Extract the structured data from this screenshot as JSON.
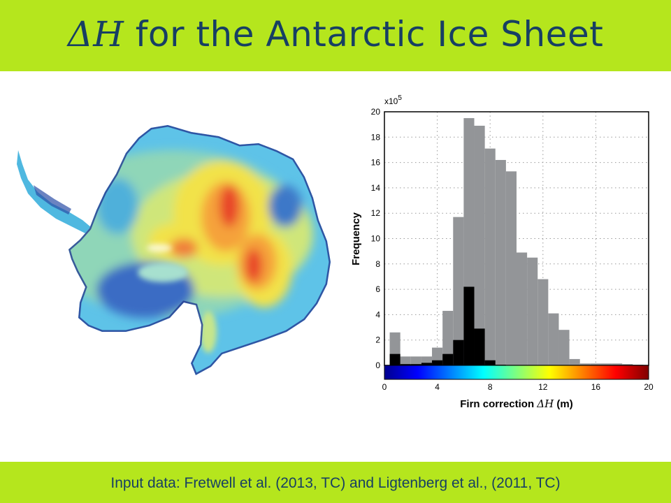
{
  "slide": {
    "title_symbol": "ΔH",
    "title_text": " for the Antarctic Ice Sheet",
    "footer": "Input data: Fretwell et al. (2013, TC) and Ligtenberg et al., (2011, TC)"
  },
  "colors": {
    "band": "#b5e61d",
    "title_text": "#173f63",
    "bar_all": "#939598",
    "bar_subset": "#000000"
  },
  "chart_data": {
    "type": "bar",
    "xlabel_text": "Firn correction ",
    "xlabel_symbol": "ΔH",
    "xlabel_unit": " (m)",
    "ylabel": "Frequency",
    "y_multiplier_base": "x10",
    "y_multiplier_exp": "5",
    "xlim": [
      0,
      20
    ],
    "ylim": [
      0,
      20
    ],
    "xticks": [
      0,
      4,
      8,
      12,
      16,
      20
    ],
    "yticks": [
      0,
      2,
      4,
      6,
      8,
      10,
      12,
      14,
      16,
      18,
      20
    ],
    "grid": true,
    "colorbar": "jet",
    "bin_width": 0.8,
    "bin_starts": [
      0.4,
      1.2,
      2.0,
      2.8,
      3.6,
      4.4,
      5.2,
      6.0,
      6.8,
      7.6,
      8.4,
      9.2,
      10.0,
      10.8,
      11.6,
      12.4,
      13.2,
      14.0,
      14.8,
      15.6,
      16.4,
      17.2,
      18.0,
      18.8
    ],
    "series": [
      {
        "values": [
          2.6,
          0.7,
          0.7,
          0.7,
          1.4,
          4.3,
          11.7,
          19.5,
          18.9,
          17.1,
          16.2,
          15.3,
          8.9,
          8.5,
          6.8,
          4.1,
          2.8,
          0.5,
          0.15,
          0.15,
          0.15,
          0.15,
          0.1,
          0.05
        ]
      },
      {
        "values": [
          0.9,
          0.1,
          0.1,
          0.2,
          0.4,
          0.9,
          2.0,
          6.2,
          2.9,
          0.4,
          0.05,
          0,
          0,
          0,
          0,
          0,
          0,
          0,
          0,
          0,
          0,
          0,
          0,
          0
        ]
      }
    ]
  }
}
